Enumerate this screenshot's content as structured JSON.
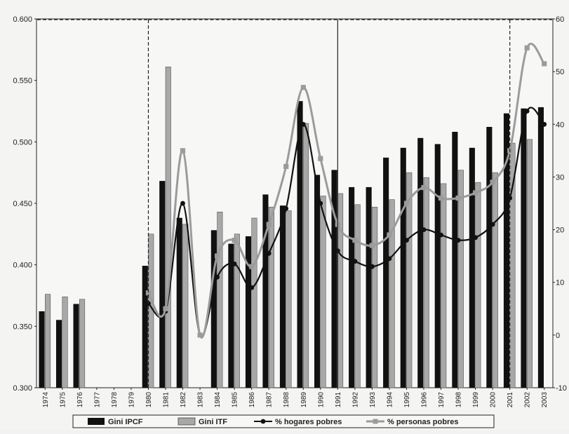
{
  "chart_data": {
    "type": "bar",
    "categories": [
      "1974",
      "1975",
      "1976",
      "1977",
      "1978",
      "1979",
      "1980",
      "1981",
      "1982",
      "1983",
      "1984",
      "1985",
      "1986",
      "1987",
      "1988",
      "1989",
      "1990",
      "1991",
      "1992",
      "1993",
      "1994",
      "1995",
      "1996",
      "1997",
      "1998",
      "1999",
      "2000",
      "2001",
      "2002",
      "2003"
    ],
    "left_axis": {
      "ylim": [
        0.3,
        0.6
      ],
      "ticks": [
        "0.300",
        "0.350",
        "0.400",
        "0.450",
        "0.500",
        "0.550",
        "0.600"
      ]
    },
    "right_axis": {
      "ylim": [
        -10,
        60
      ],
      "ticks": [
        "-10",
        "0",
        "10",
        "20",
        "30",
        "40",
        "50",
        "60"
      ]
    },
    "series": [
      {
        "name": "Gini IPCF",
        "kind": "bar",
        "axis": "left",
        "color": "#111111",
        "values": [
          0.362,
          0.355,
          0.368,
          null,
          null,
          null,
          0.399,
          0.468,
          0.438,
          null,
          0.428,
          0.417,
          0.423,
          0.457,
          0.448,
          0.533,
          0.473,
          0.477,
          0.463,
          0.463,
          0.487,
          0.495,
          0.503,
          0.498,
          0.508,
          0.495,
          0.512,
          0.523,
          0.527,
          0.528
        ]
      },
      {
        "name": "Gini ITF",
        "kind": "bar",
        "axis": "left",
        "color": "#a8a8a8",
        "values": [
          0.376,
          0.374,
          0.372,
          null,
          null,
          null,
          0.425,
          0.561,
          0.433,
          null,
          0.443,
          0.425,
          0.438,
          0.447,
          0.444,
          0.515,
          0.456,
          0.458,
          0.449,
          0.447,
          0.453,
          0.475,
          0.471,
          0.466,
          0.477,
          0.467,
          0.475,
          0.499,
          0.502,
          null
        ]
      },
      {
        "name": "% hogares pobres",
        "kind": "line",
        "axis": "right",
        "color": "#111111",
        "marker": "circle",
        "values": [
          null,
          null,
          null,
          null,
          null,
          null,
          6,
          4.5,
          25,
          0,
          11,
          13.5,
          9,
          15.5,
          24,
          40,
          25,
          16,
          14,
          13,
          14.5,
          18,
          20,
          19,
          18,
          18.5,
          21,
          26,
          42.5,
          40
        ]
      },
      {
        "name": "% personas pobres",
        "kind": "line",
        "axis": "right",
        "color": "#9b9b9b",
        "marker": "square",
        "values": [
          null,
          null,
          null,
          null,
          null,
          null,
          8,
          5,
          35,
          0,
          15,
          18,
          13,
          21,
          32,
          47,
          33.5,
          21,
          18,
          17,
          19,
          25,
          28,
          26,
          26,
          27,
          29,
          35,
          54.5,
          51.5
        ]
      }
    ],
    "legend_position": "bottom",
    "grid": false,
    "reference_lines": [
      "1980",
      "1991",
      "2001"
    ]
  }
}
